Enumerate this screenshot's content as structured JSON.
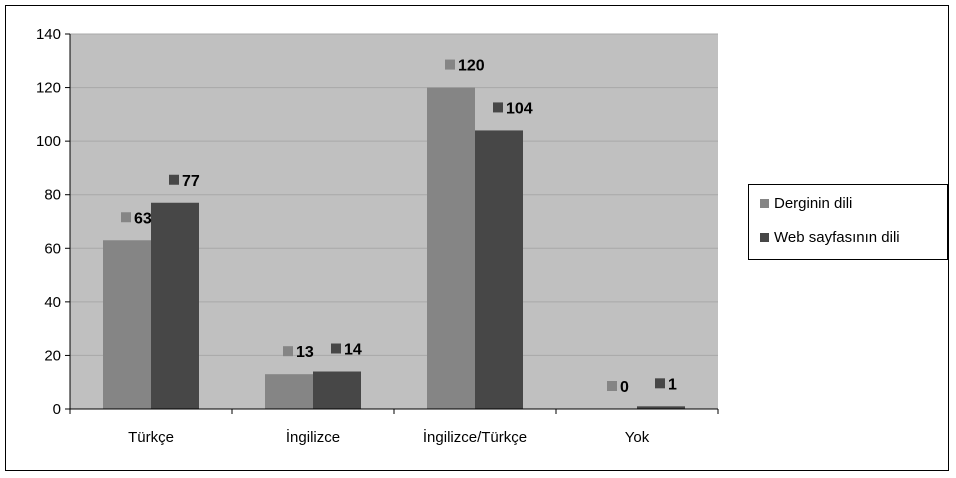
{
  "chart_data": {
    "type": "bar",
    "categories": [
      "Türkçe",
      "İngilizce",
      "İngilizce/Türkçe",
      "Yok"
    ],
    "series": [
      {
        "name": "Derginin dili",
        "values": [
          63,
          13,
          120,
          0
        ],
        "color": "#858585"
      },
      {
        "name": "Web sayfasının dili",
        "values": [
          77,
          14,
          104,
          1
        ],
        "color": "#474747"
      }
    ],
    "ylim": [
      0,
      140
    ],
    "yticks": [
      "0",
      "20",
      "40",
      "60",
      "80",
      "100",
      "120",
      "140"
    ],
    "grid": true,
    "legend_position": "right",
    "plot_background": "#c0c0c0",
    "gridline_color": "#a8a8a8"
  }
}
